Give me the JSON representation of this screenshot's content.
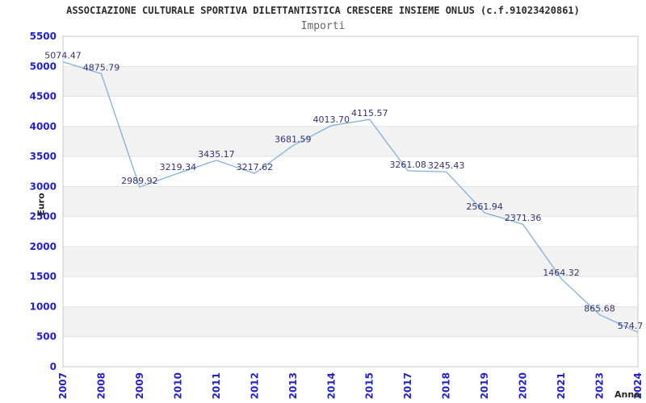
{
  "chart_data": {
    "type": "line",
    "title": "ASSOCIAZIONE CULTURALE SPORTIVA DILETTANTISTICA CRESCERE INSIEME ONLUS (c.f.91023420861)",
    "subtitle": "Importi",
    "xlabel": "Anno",
    "ylabel": "Euro",
    "categories": [
      "2007",
      "2008",
      "2009",
      "2010",
      "2011",
      "2012",
      "2013",
      "2014",
      "2015",
      "2017",
      "2018",
      "2019",
      "2020",
      "2021",
      "2023",
      "2024"
    ],
    "values": [
      5074.47,
      4875.79,
      2989.92,
      3219.34,
      3435.17,
      3217.62,
      3681.59,
      4013.7,
      4115.57,
      3261.08,
      3245.43,
      2561.94,
      2371.36,
      1464.32,
      865.68,
      574.7
    ],
    "point_labels": [
      "5074.47",
      "4875.79",
      "2989.92",
      "3219.34",
      "3435.17",
      "3217.62",
      "3681.59",
      "4013.70",
      "4115.57",
      "3261.08",
      "3245.43",
      "2561.94",
      "2371.36",
      "1464.32",
      "865.68",
      "574.7"
    ],
    "ylim": [
      0,
      5500
    ],
    "ytick_step": 500,
    "legend": "none",
    "grid": "horizontal-alternating-bands",
    "colors": {
      "line": "#82afe1",
      "tick_labels": "#2222cc",
      "point_labels": "#333370",
      "title": "#2b2b2b",
      "subtitle": "#666666",
      "band": "#f2f2f2",
      "gridline": "#e2e2e2",
      "border": "#c8c8c8",
      "background": "#ffffff"
    }
  }
}
